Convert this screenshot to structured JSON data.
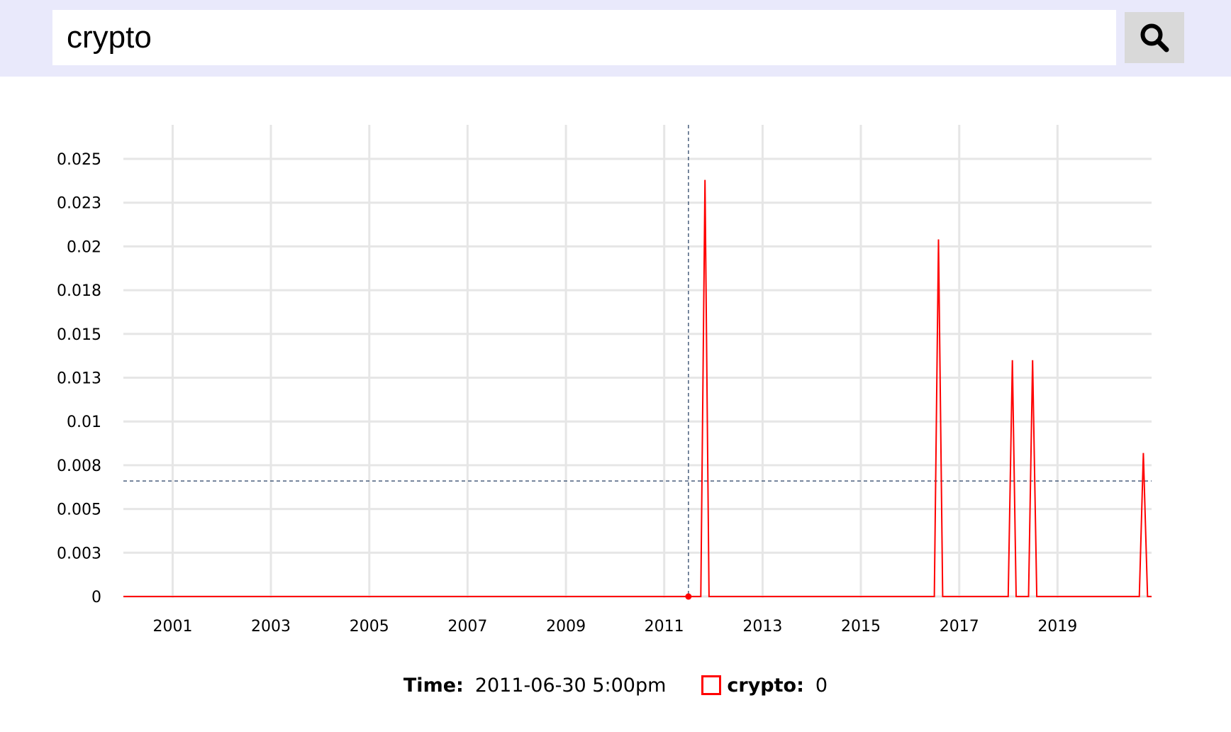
{
  "search": {
    "value": "crypto",
    "icon": "search-icon"
  },
  "colors": {
    "header_bg": "#e9e9fb",
    "series": "#ff0000",
    "grid": "#e6e6e6",
    "crosshair": "#4a5f7d"
  },
  "chart_data": {
    "type": "line",
    "title": "",
    "xlabel": "",
    "ylabel": "",
    "grid": true,
    "x_ticks": [
      "2001",
      "2003",
      "2005",
      "2007",
      "2009",
      "2011",
      "2013",
      "2015",
      "2017",
      "2019"
    ],
    "y_ticks": [
      "0",
      "0.003",
      "0.005",
      "0.008",
      "0.01",
      "0.013",
      "0.015",
      "0.018",
      "0.02",
      "0.023",
      "0.025"
    ],
    "xlim": [
      "2000-01-01",
      "2020-11-30"
    ],
    "ylim": [
      0,
      0.025
    ],
    "series": [
      {
        "name": "crypto",
        "color": "#ff0000",
        "points": [
          [
            "2000-01-01",
            0
          ],
          [
            "2011-06-30",
            0
          ],
          [
            "2011-09-30",
            0
          ],
          [
            "2011-10-31",
            0.0238
          ],
          [
            "2011-11-30",
            0
          ],
          [
            "2016-06-30",
            0
          ],
          [
            "2016-07-31",
            0.0204
          ],
          [
            "2016-08-31",
            0
          ],
          [
            "2017-12-31",
            0
          ],
          [
            "2018-01-31",
            0.0135
          ],
          [
            "2018-02-28",
            0
          ],
          [
            "2018-05-31",
            0
          ],
          [
            "2018-06-30",
            0.0135
          ],
          [
            "2018-07-31",
            0
          ],
          [
            "2020-08-31",
            0
          ],
          [
            "2020-09-30",
            0.0082
          ],
          [
            "2020-10-31",
            0
          ],
          [
            "2020-11-30",
            0
          ]
        ]
      }
    ],
    "crosshair": {
      "x": "2011-06-30",
      "y": 0.0066
    },
    "tooltip": {
      "time_label": "Time:",
      "time_value": "2011-06-30 5:00pm",
      "series_label": "crypto:",
      "series_value": "0"
    }
  }
}
